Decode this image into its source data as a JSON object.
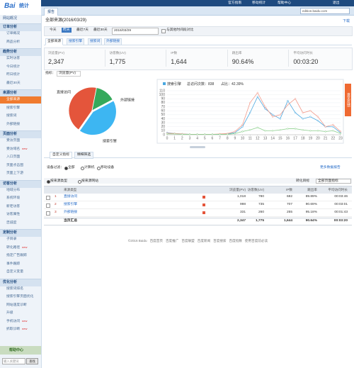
{
  "header": {
    "logo_left": "Bai",
    "logo_right": "统计",
    "nav": [
      "官方指南",
      "移动统计",
      "帮助中心",
      "退出"
    ],
    "tab": "报告",
    "site": "edition.baidu.com"
  },
  "sidebar": {
    "overview": "网站概况",
    "groups": [
      {
        "title": "订单分析",
        "items": [
          {
            "label": "订单概况"
          },
          {
            "label": "商品分析"
          }
        ]
      },
      {
        "title": "趋势分析",
        "items": [
          {
            "label": "实时访客"
          },
          {
            "label": "今日统计"
          },
          {
            "label": "昨日统计"
          },
          {
            "label": "最近30天"
          }
        ]
      },
      {
        "title": "来源分析",
        "items": [
          {
            "label": "全部来源"
          },
          {
            "label": "搜索引擎"
          },
          {
            "label": "搜索词"
          },
          {
            "label": "外部链接"
          }
        ]
      },
      {
        "title": "页面分析",
        "items": [
          {
            "label": "受访页面"
          },
          {
            "label": "受访域名",
            "badge": "new"
          },
          {
            "label": "入口页面"
          },
          {
            "label": "页面点击图"
          },
          {
            "label": "页面上下游"
          }
        ]
      },
      {
        "title": "访客分析",
        "items": [
          {
            "label": "地域分布"
          },
          {
            "label": "系统环境"
          },
          {
            "label": "新老访客"
          },
          {
            "label": "访客属性"
          },
          {
            "label": "忠诚度"
          }
        ]
      },
      {
        "title": "定制分析",
        "items": [
          {
            "label": "子目录"
          },
          {
            "label": "转化路径",
            "badge": "new"
          },
          {
            "label": "指定广告跟踪"
          },
          {
            "label": "事件跟踪"
          },
          {
            "label": "自定义变量"
          }
        ]
      },
      {
        "title": "优化分析",
        "items": [
          {
            "label": "搜索词排名"
          },
          {
            "label": "搜索引擎页面优化"
          },
          {
            "label": "网站速度诊断"
          },
          {
            "label": "升级"
          },
          {
            "label": "手机访问",
            "badge": "new"
          },
          {
            "label": "抓取诊断",
            "badge": "new"
          }
        ]
      }
    ],
    "help": "帮助中心",
    "search_placeholder": "输入关键词",
    "search_button": "查找"
  },
  "report": {
    "title": "全部来源(2016/03/29)",
    "download": "下载",
    "date_buttons": [
      "今天",
      "昨天",
      "最近7天",
      "最近30天"
    ],
    "date": "2016/03/29",
    "compare": "与其他时间段对比",
    "tabs": [
      "全部来源",
      "搜索引擎",
      "搜索词",
      "外部链接"
    ],
    "metrics": [
      {
        "label": "浏览量(PV)",
        "value": "2,347"
      },
      {
        "label": "访客数(UV)",
        "value": "1,775"
      },
      {
        "label": "IP数",
        "value": "1,644"
      },
      {
        "label": "跳出率",
        "value": "90.64%"
      },
      {
        "label": "平均访问时长",
        "value": "00:03:20"
      }
    ],
    "indicator_label": "指标：",
    "indicator": "浏览量(PV)",
    "feedback": "意见反馈"
  },
  "pie": {
    "type": "pie",
    "categories": [
      "直接访问",
      "外部链接",
      "搜索引擎"
    ],
    "values": [
      1018,
      331,
      998
    ],
    "colors": [
      "#e4553b",
      "#35a95b",
      "#3db6f2"
    ]
  },
  "line": {
    "type": "line",
    "legend": {
      "name": "搜索引擎",
      "total": "总访问次数：838",
      "share": "占比：42.39%"
    },
    "x": [
      0,
      1,
      2,
      3,
      4,
      5,
      6,
      7,
      8,
      9,
      10,
      11,
      12,
      13,
      14,
      15,
      16,
      17,
      18,
      19,
      20,
      21,
      22,
      23
    ],
    "xlim": [
      0,
      23
    ],
    "xticks": [
      0,
      1,
      2,
      3,
      4,
      5,
      6,
      7,
      8,
      9,
      10,
      11,
      12,
      13,
      14,
      15,
      16,
      17,
      18,
      19,
      20,
      21,
      22,
      23
    ],
    "ylim": [
      0,
      110
    ],
    "yticks": [
      0,
      10,
      20,
      30,
      40,
      50,
      60,
      70,
      80,
      90,
      100,
      110
    ],
    "grid": true,
    "series": [
      {
        "color": "#4aa8e0",
        "values": [
          5,
          3,
          2,
          1,
          1,
          1,
          1,
          1,
          2,
          5,
          20,
          55,
          95,
          65,
          50,
          40,
          85,
          55,
          40,
          45,
          35,
          20,
          20,
          5
        ]
      },
      {
        "color": "#f29a8a",
        "values": [
          4,
          3,
          2,
          1,
          1,
          1,
          1,
          2,
          3,
          8,
          25,
          80,
          105,
          70,
          45,
          50,
          75,
          90,
          55,
          60,
          45,
          20,
          25,
          8
        ]
      },
      {
        "color": "#8fd18f",
        "values": [
          2,
          2,
          1,
          1,
          1,
          1,
          1,
          1,
          1,
          3,
          8,
          12,
          18,
          10,
          10,
          12,
          15,
          15,
          12,
          10,
          10,
          8,
          10,
          3
        ]
      }
    ]
  },
  "panel": {
    "tabs": [
      "自定义指标",
      "精细筛选"
    ],
    "device_label": "设备过滤：",
    "devices": [
      "全部",
      "计算机",
      "移动设备"
    ],
    "more": "更多数据报告",
    "group_by": [
      "按来源类型",
      "按来源网站"
    ],
    "goal": "转化目标",
    "goal_select": "全部页面指标"
  },
  "table": {
    "headers": [
      "来源类型",
      "浏览量(PV)",
      "访客数(UV)",
      "IP数",
      "跳出率",
      "平均访问时长"
    ],
    "rows": [
      [
        "1",
        "直接访问",
        "1,018",
        "780",
        "682",
        "89.89%",
        "00:03:46"
      ],
      [
        "2",
        "搜索引擎",
        "998",
        "735",
        "707",
        "90.69%",
        "00:03:01"
      ],
      [
        "3",
        "外部链接",
        "331",
        "260",
        "255",
        "95.18%",
        "00:01:43"
      ]
    ],
    "total": [
      "当页汇总",
      "2,347",
      "1,775",
      "1,644",
      "90.64%",
      "00:03:20"
    ]
  },
  "footer": {
    "copyright": "©2016 Baidu",
    "links": [
      "百度首页",
      "百度推广",
      "百度联盟",
      "百度新闻",
      "百度搜索",
      "百度指数",
      "使用百度前必读"
    ]
  }
}
